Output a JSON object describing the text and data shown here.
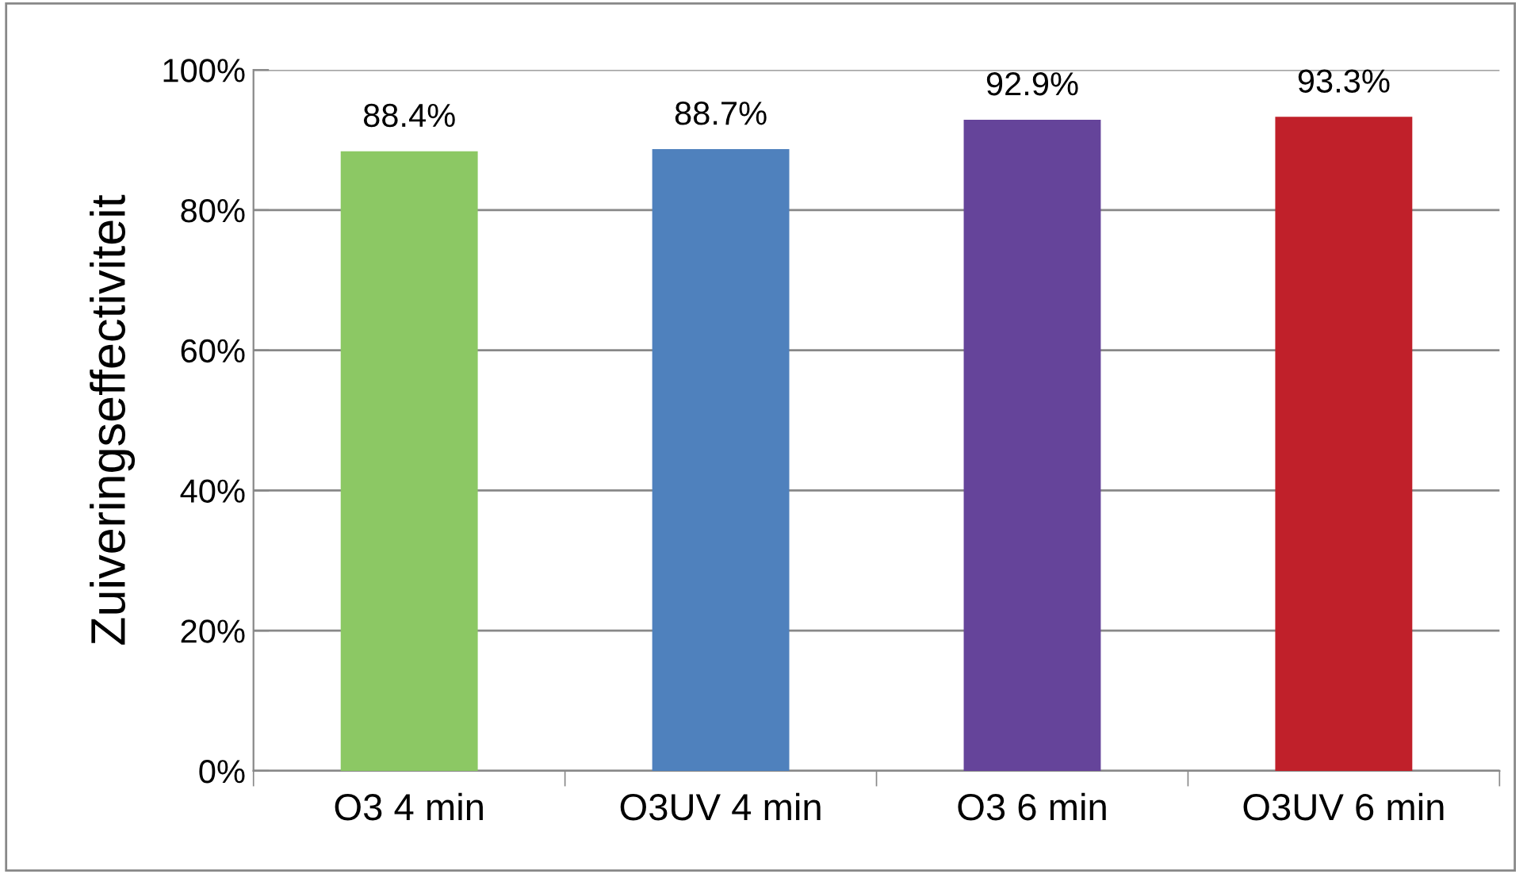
{
  "chart_data": {
    "type": "bar",
    "ylabel": "Zuiveringseffectiviteit",
    "categories": [
      "O3 4 min",
      "O3UV 4 min",
      "O3 6 min",
      "O3UV 6 min"
    ],
    "values": [
      88.4,
      88.7,
      92.9,
      93.3
    ],
    "colors": [
      "#8cc864",
      "#4f81bd",
      "#65449a",
      "#c0202a"
    ],
    "value_labels": [
      "88.4%",
      "88.7%",
      "92.9%",
      "93.3%"
    ],
    "ylim": [
      0,
      100
    ],
    "yticks": [
      {
        "value": 0,
        "label": "0%"
      },
      {
        "value": 20,
        "label": "20%"
      },
      {
        "value": 40,
        "label": "40%"
      },
      {
        "value": 60,
        "label": "60%"
      },
      {
        "value": 80,
        "label": "80%"
      },
      {
        "value": 100,
        "label": "100%"
      }
    ],
    "grid": "y",
    "legend": false
  }
}
